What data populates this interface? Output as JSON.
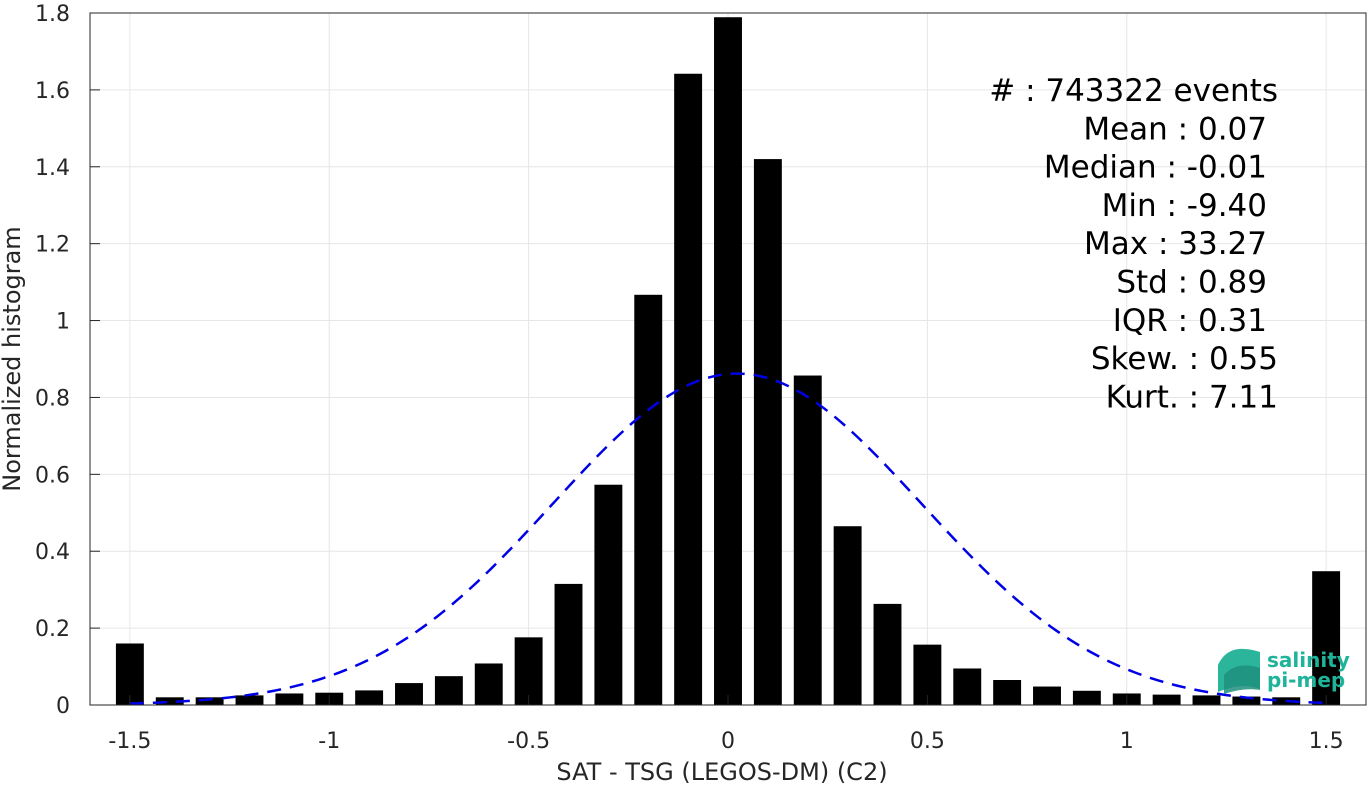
{
  "chart_data": {
    "type": "bar",
    "title": "",
    "xlabel": "SAT - TSG (LEGOS-DM) (C2)",
    "ylabel": "Normalized histogram",
    "xlim": [
      -1.6,
      1.6
    ],
    "ylim": [
      0,
      1.8
    ],
    "grid": true,
    "x_ticks": [
      -1.5,
      -1,
      -0.5,
      0,
      0.5,
      1,
      1.5
    ],
    "x_tick_labels": [
      "-1.5",
      "-1",
      "-0.5",
      "0",
      "0.5",
      "1",
      "1.5"
    ],
    "y_ticks": [
      0,
      0.2,
      0.4,
      0.6,
      0.8,
      1,
      1.2,
      1.4,
      1.6,
      1.8
    ],
    "y_tick_labels": [
      "0",
      "0.2",
      "0.4",
      "0.6",
      "0.8",
      "1",
      "1.2",
      "1.4",
      "1.6",
      "1.8"
    ],
    "bar_width": 0.07,
    "bar_color": "#000000",
    "series": [
      {
        "x": [
          -1.5,
          -1.4,
          -1.3,
          -1.2,
          -1.1,
          -1.0,
          -0.9,
          -0.8,
          -0.7,
          -0.6,
          -0.5,
          -0.4,
          -0.3,
          -0.2,
          -0.1,
          0.0,
          0.1,
          0.2,
          0.3,
          0.4,
          0.5,
          0.6,
          0.7,
          0.8,
          0.9,
          1.0,
          1.1,
          1.2,
          1.3,
          1.4,
          1.5
        ],
        "values": [
          0.16,
          0.02,
          0.02,
          0.025,
          0.03,
          0.032,
          0.038,
          0.057,
          0.075,
          0.108,
          0.176,
          0.315,
          0.573,
          1.067,
          1.642,
          1.789,
          1.42,
          0.857,
          0.465,
          0.263,
          0.157,
          0.095,
          0.065,
          0.048,
          0.037,
          0.03,
          0.027,
          0.025,
          0.022,
          0.02,
          0.348
        ]
      }
    ],
    "fit": {
      "style": "dashed",
      "color": "#0000e6",
      "mean": 0.023,
      "std": 0.463,
      "peak": 0.862,
      "x_range": [
        -1.5,
        1.5
      ]
    },
    "stats": [
      {
        "label": "#",
        "value": ": 743322 events"
      },
      {
        "label": "Mean",
        "value": ": 0.07"
      },
      {
        "label": "Median",
        "value": ": -0.01"
      },
      {
        "label": "Min",
        "value": ": -9.40"
      },
      {
        "label": "Max",
        "value": ": 33.27"
      },
      {
        "label": "Std",
        "value": ": 0.89"
      },
      {
        "label": "IQR",
        "value": ": 0.31"
      },
      {
        "label": "Skew.",
        "value": ": 0.55"
      },
      {
        "label": "Kurt.",
        "value": ": 7.11"
      }
    ]
  },
  "logo": {
    "line1": "salinity",
    "line2": "pi-mep",
    "color": "#1fb39a"
  }
}
